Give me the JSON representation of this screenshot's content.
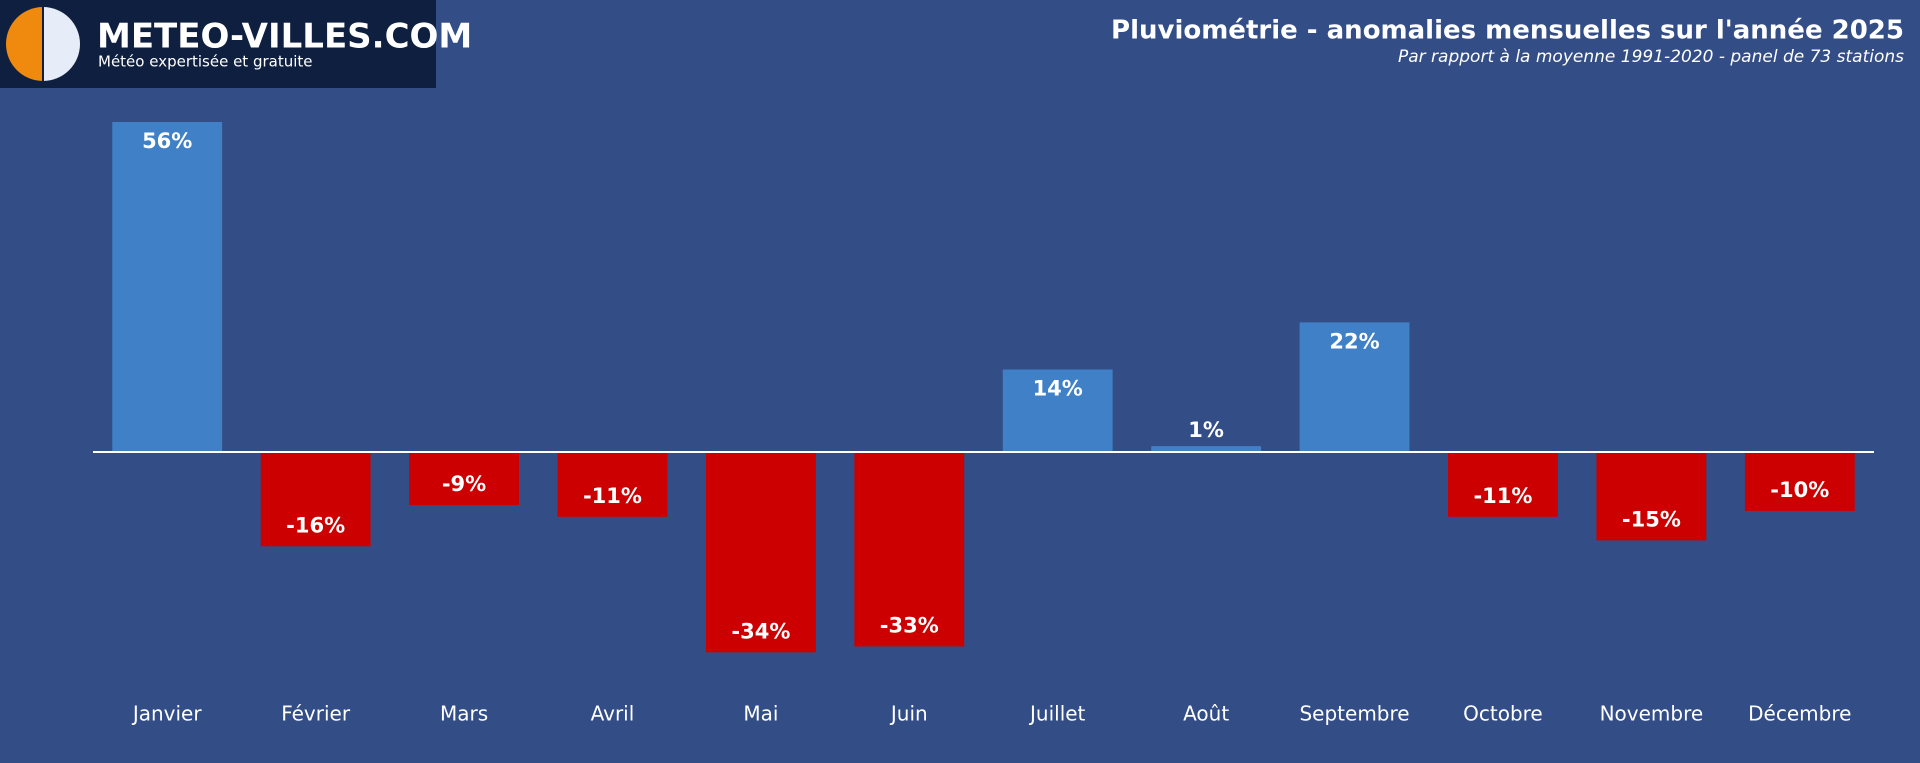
{
  "header": {
    "brand": "METEO-VILLES.COM",
    "tagline": "Météo expertisée et gratuite"
  },
  "chart_data": {
    "type": "bar",
    "title": "Pluviométrie - anomalies mensuelles sur l'année 2025",
    "subtitle": "Par rapport à la moyenne 1991-2020 - panel de 73 stations",
    "categories": [
      "Janvier",
      "Février",
      "Mars",
      "Avril",
      "Mai",
      "Juin",
      "Juillet",
      "Août",
      "Septembre",
      "Octobre",
      "Novembre",
      "Décembre"
    ],
    "values": [
      56,
      -16,
      -9,
      -11,
      -34,
      -33,
      14,
      1,
      22,
      -11,
      -15,
      -10
    ],
    "value_labels": [
      "56%",
      "-16%",
      "-9%",
      "-11%",
      "-34%",
      "-33%",
      "14%",
      "1%",
      "22%",
      "-11%",
      "-15%",
      "-10%"
    ],
    "color_positive": "#3f80c6",
    "color_negative": "#cc0000"
  }
}
